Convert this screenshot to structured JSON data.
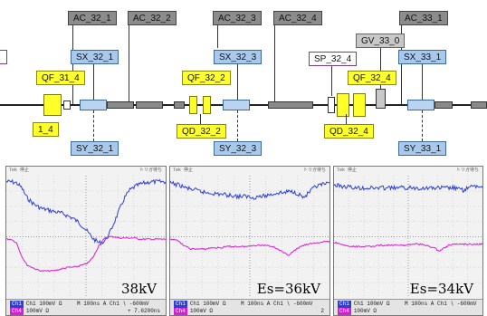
{
  "schematic": {
    "ac_tags": [
      "AC_32_1",
      "AC_32_2",
      "AC_32_3",
      "AC_32_4",
      "AC_33_1"
    ],
    "sx_tags": [
      "SX_32_1",
      "SX_32_3",
      "SX_33_1"
    ],
    "sy_tags": [
      "SY_32_1",
      "SY_32_3",
      "SY_33_1"
    ],
    "qf_tags": [
      "QF_31_4",
      "QF_32_2",
      "QF_32_4"
    ],
    "qd_tags": [
      "1_4",
      "QD_32_2",
      "QD_32_4"
    ],
    "sp_tag": "SP_32_4",
    "gv_tag": "GV_33_0",
    "colors": {
      "ac": "#8c8c8c",
      "sx_sy": "#a9c9ec",
      "quad": "#ffff2a",
      "gv": "#c8c8c8",
      "beamline": "#222222"
    }
  },
  "scopes": [
    {
      "label": "38kV",
      "header_left": "Tek 停止",
      "header_right": "トリガ待ち",
      "ch1": "Ch1  100mV Ω",
      "ch4": "100mV Ω",
      "timebase": "M 100ns  A  Ch1 ∖ -600mV",
      "page": "+ 7.6200ns",
      "trace_colors": {
        "ch1": "#2d3fd6",
        "ch4": "#d61fd6"
      },
      "ch1_trace": [
        0.05,
        0.05,
        0.06,
        0.1,
        0.18,
        0.22,
        0.25,
        0.27,
        0.28,
        0.29,
        0.3,
        0.31,
        0.33,
        0.35,
        0.38,
        0.42,
        0.47,
        0.52,
        0.55,
        0.54,
        0.48,
        0.38,
        0.28,
        0.18,
        0.12,
        0.09,
        0.07,
        0.06,
        0.05,
        0.05,
        0.05,
        0.05
      ],
      "ch4_trace": [
        0.52,
        0.52,
        0.55,
        0.66,
        0.73,
        0.75,
        0.77,
        0.78,
        0.78,
        0.78,
        0.77,
        0.76,
        0.75,
        0.75,
        0.74,
        0.73,
        0.71,
        0.66,
        0.57,
        0.52,
        0.5,
        0.5,
        0.51,
        0.51,
        0.51,
        0.51,
        0.52,
        0.52,
        0.52,
        0.52,
        0.52,
        0.52
      ]
    },
    {
      "label": "Es=36kV",
      "header_left": "Tek 停止",
      "header_right": "トリガ待ち",
      "ch1": "Ch1  100mV Ω",
      "ch4": "100mV Ω",
      "timebase": "M 100ns  A  Ch1 ∖ -600mV",
      "page": "2",
      "trace_colors": {
        "ch1": "#2d3fd6",
        "ch4": "#d61fd6"
      },
      "ch1_trace": [
        0.06,
        0.07,
        0.08,
        0.1,
        0.11,
        0.12,
        0.13,
        0.14,
        0.14,
        0.15,
        0.15,
        0.16,
        0.16,
        0.17,
        0.17,
        0.17,
        0.18,
        0.17,
        0.17,
        0.16,
        0.15,
        0.14,
        0.14,
        0.13,
        0.13,
        0.15,
        0.18,
        0.14,
        0.1,
        0.08,
        0.07,
        0.07
      ],
      "ch4_trace": [
        0.52,
        0.52,
        0.55,
        0.58,
        0.6,
        0.6,
        0.6,
        0.6,
        0.59,
        0.59,
        0.59,
        0.58,
        0.58,
        0.58,
        0.58,
        0.58,
        0.57,
        0.57,
        0.57,
        0.57,
        0.58,
        0.6,
        0.63,
        0.65,
        0.62,
        0.59,
        0.57,
        0.56,
        0.55,
        0.55,
        0.54,
        0.54
      ]
    },
    {
      "label": "Es=34kV",
      "header_left": "Tek 停止",
      "header_right": "トリガ待ち",
      "ch1": "Ch1  100mV Ω",
      "ch4": "100mV Ω",
      "timebase": "M 100ns  A  Ch1 ∖ -600mV",
      "page": "",
      "trace_colors": {
        "ch1": "#2d3fd6",
        "ch4": "#d61fd6"
      },
      "ch1_trace": [
        0.08,
        0.08,
        0.09,
        0.09,
        0.1,
        0.1,
        0.1,
        0.1,
        0.1,
        0.1,
        0.1,
        0.1,
        0.1,
        0.1,
        0.1,
        0.1,
        0.1,
        0.1,
        0.1,
        0.1,
        0.1,
        0.1,
        0.1,
        0.1,
        0.1,
        0.1,
        0.11,
        0.12,
        0.1,
        0.09,
        0.09,
        0.09
      ],
      "ch4_trace": [
        0.55,
        0.55,
        0.57,
        0.58,
        0.58,
        0.58,
        0.58,
        0.58,
        0.58,
        0.57,
        0.57,
        0.57,
        0.57,
        0.57,
        0.57,
        0.57,
        0.56,
        0.56,
        0.56,
        0.57,
        0.58,
        0.59,
        0.62,
        0.59,
        0.57,
        0.56,
        0.56,
        0.56,
        0.56,
        0.56,
        0.56,
        0.56
      ]
    }
  ]
}
